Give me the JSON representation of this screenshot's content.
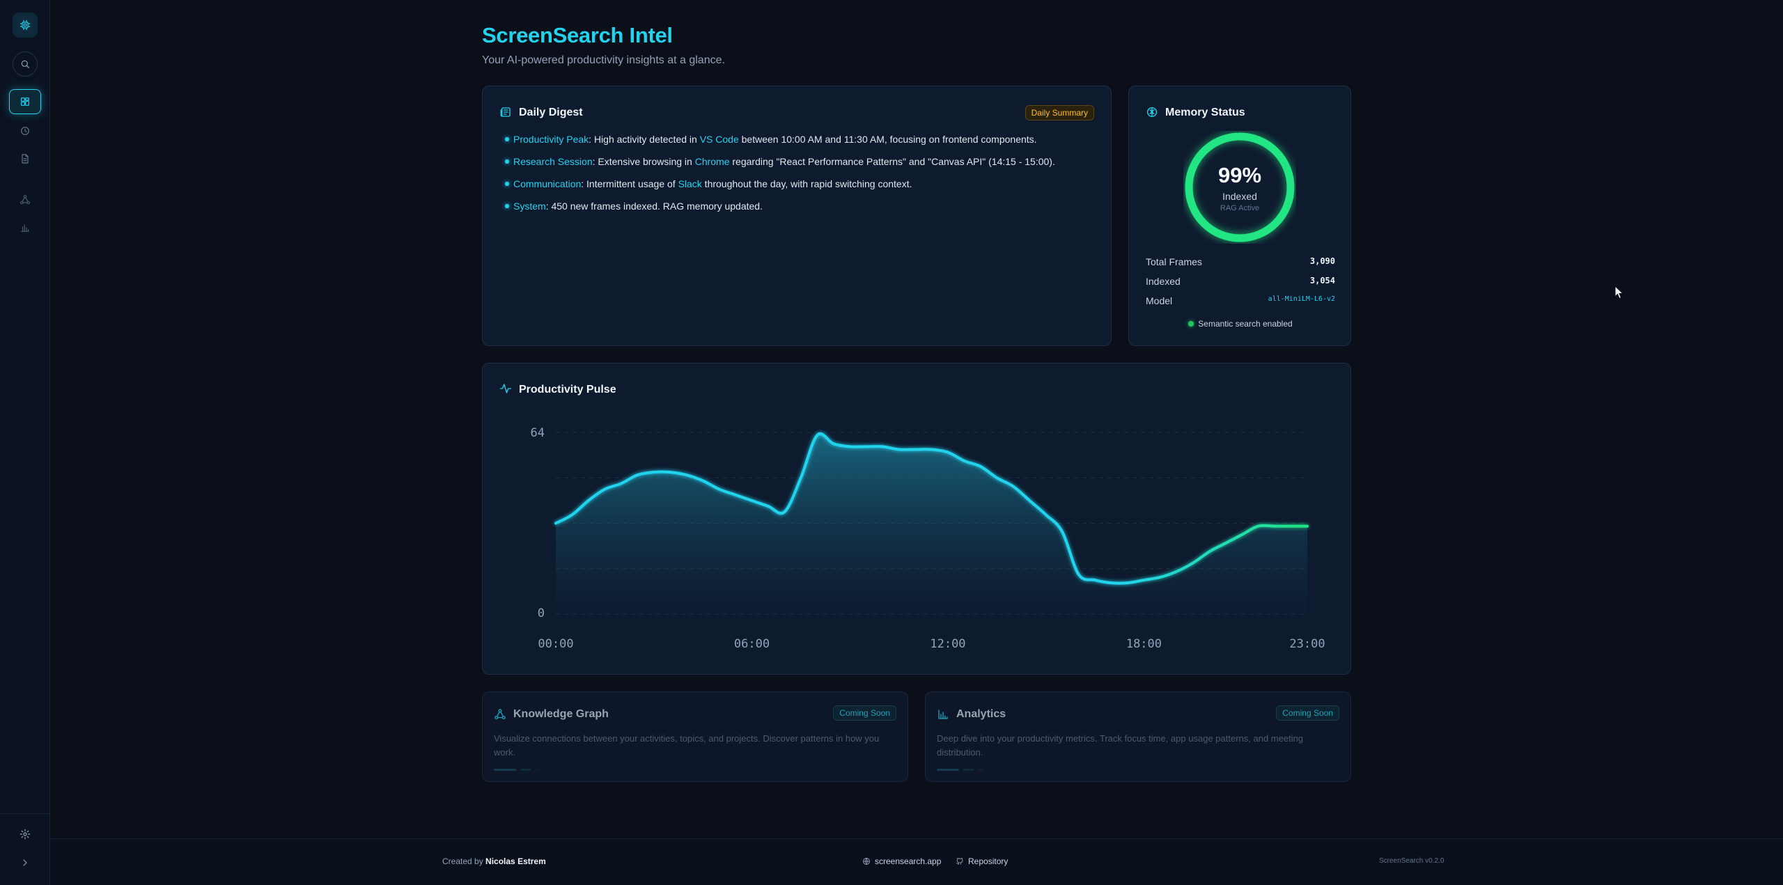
{
  "app": {
    "title": "ScreenSearch Intel",
    "subtitle": "Your AI-powered productivity insights at a glance."
  },
  "sidebar": {
    "items": [
      {
        "icon": "cpu-logo-icon"
      },
      {
        "icon": "search-icon"
      },
      {
        "icon": "dashboard-icon",
        "active": true
      },
      {
        "icon": "clock-icon"
      },
      {
        "icon": "document-icon"
      },
      {
        "icon": "graph-icon"
      },
      {
        "icon": "bar-chart-icon"
      },
      {
        "icon": "gear-icon"
      },
      {
        "icon": "chevron-right-icon"
      }
    ]
  },
  "digest": {
    "title": "Daily Digest",
    "badge": "Daily Summary",
    "items": [
      {
        "label": "Productivity Peak",
        "t1": ": High activity detected in ",
        "app": "VS Code",
        "t2": " between 10:00 AM and 11:30 AM, focusing on frontend components."
      },
      {
        "label": "Research Session",
        "t1": ": Extensive browsing in ",
        "app": "Chrome",
        "t2": " regarding \"React Performance Patterns\" and \"Canvas API\" (14:15 - 15:00)."
      },
      {
        "label": "Communication",
        "t1": ": Intermittent usage of ",
        "app": "Slack",
        "t2": " throughout the day, with rapid switching context."
      },
      {
        "label": "System",
        "t1": ": 450 new frames indexed. RAG memory updated.",
        "app": "",
        "t2": ""
      }
    ]
  },
  "memory": {
    "title": "Memory Status",
    "percent": "99%",
    "percent_value": 99,
    "ring_label": "Indexed",
    "ring_sub": "RAG Active",
    "rows": [
      {
        "key": "Total Frames",
        "value": "3,090"
      },
      {
        "key": "Indexed",
        "value": "3,054"
      },
      {
        "key": "Model",
        "value": "all-MiniLM-L6-v2"
      }
    ],
    "status": "Semantic search enabled",
    "colors": {
      "ring": "#22e684",
      "ring_track": "#0f3a2a"
    }
  },
  "pulse": {
    "title": "Productivity Pulse"
  },
  "chart_data": {
    "type": "area",
    "x_ticks": [
      "00:00",
      "06:00",
      "12:00",
      "18:00",
      "23:00"
    ],
    "y_ticks": [
      "64",
      "0"
    ],
    "ylim": [
      0,
      64
    ],
    "x_hours": [
      0,
      0.5,
      1,
      1.5,
      2,
      2.5,
      3,
      3.5,
      4,
      4.5,
      5,
      5.5,
      6,
      6.5,
      7,
      7.5,
      8,
      8.5,
      9,
      9.5,
      10,
      10.5,
      11,
      11.5,
      12,
      12.5,
      13,
      13.5,
      14,
      14.5,
      15,
      15.5,
      16,
      16.5,
      17,
      17.5,
      18,
      18.5,
      19,
      19.5,
      20,
      20.5,
      21,
      21.5,
      22,
      22.5,
      23
    ],
    "values": [
      32,
      35,
      40,
      44,
      46,
      49,
      50,
      50,
      49,
      47,
      44,
      42,
      40,
      38,
      36,
      48,
      63,
      60,
      59,
      59,
      59,
      58,
      58,
      58,
      57,
      54,
      52,
      48,
      45,
      40,
      35,
      29,
      14,
      12,
      11,
      11,
      12,
      13,
      15,
      18,
      22,
      25,
      28,
      31,
      31,
      31,
      31
    ],
    "colors": {
      "start": "#22d3ee",
      "end": "#22e684"
    }
  },
  "knowledge_graph": {
    "title": "Knowledge Graph",
    "badge": "Coming Soon",
    "description": "Visualize connections between your activities, topics, and projects. Discover patterns in how you work."
  },
  "analytics": {
    "title": "Analytics",
    "badge": "Coming Soon",
    "description": "Deep dive into your productivity metrics. Track focus time, app usage patterns, and meeting distribution."
  },
  "footer": {
    "created_prefix": "Created by ",
    "author": "Nicolas Estrem",
    "site": "screensearch.app",
    "repo": "Repository",
    "version": "ScreenSearch v0.2.0"
  }
}
